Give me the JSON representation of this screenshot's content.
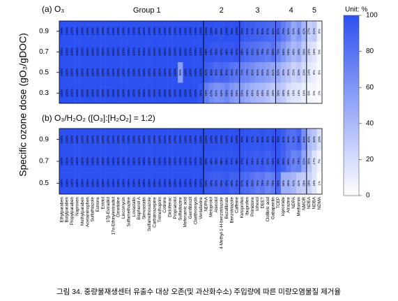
{
  "chart_data": [
    {
      "type": "heatmap",
      "title": "(a) O₃",
      "ylabel": "Specific ozone dose (gO₃/gDOC)",
      "rows": [
        0.9,
        0.7,
        0.5,
        0.3
      ],
      "groups": [
        {
          "name": "Group 1",
          "categories": [
            "Ethylparaben",
            "Butylparaben",
            "Propylparaben",
            "Naproxen",
            "Methylparaben",
            "Acetaminophen",
            "Sulfathiazole",
            "Estrone",
            "Estriol",
            "17β-Estradiol",
            "17α-Ethinylestradiol",
            "Cimetidine",
            "Lincomycin",
            "Sulfamethazine",
            "Lovastatin",
            "Bisphenol A",
            "Simvastatin",
            "Sulfamethoxazole",
            "Carbamazepine",
            "Trimethoprim",
            "Cotinine",
            "Diclofenac",
            "Propranolol",
            "Sulfadiazine",
            "Mefenamic acid",
            "Gemfibrozil",
            "Clarithromycin",
            "Venlafaxine"
          ]
        },
        {
          "name": "2",
          "categories": [
            "NDPhA",
            "Metoprolol",
            "Atenolol",
            "4-Methyl-1-H-benzotriazole",
            "Bezafibrate",
            "Benzotriazole",
            "Caffeine"
          ]
        },
        {
          "name": "3",
          "categories": [
            "Ketoprofen",
            "Ibuprofen",
            "Primidone",
            "Iohexol",
            "DEET",
            "Clofibric acid",
            "Gabapentin"
          ]
        },
        {
          "name": "4",
          "categories": [
            "TCEP",
            "Iopromide",
            "Atrazine",
            "NDPA",
            "Metformin",
            "NMOR"
          ]
        },
        {
          "name": "5",
          "categories": [
            "NDEA",
            "NDBA",
            "NDMA"
          ]
        }
      ],
      "values": [
        [
          100,
          100,
          100,
          100,
          100,
          100,
          100,
          100,
          100,
          100,
          100,
          100,
          100,
          100,
          100,
          100,
          100,
          100,
          100,
          100,
          100,
          100,
          100,
          100,
          100,
          100,
          100,
          100,
          100,
          100,
          99,
          99,
          100,
          99,
          100,
          96,
          94,
          92,
          90,
          89,
          87,
          85,
          85,
          75,
          65,
          50,
          58,
          42,
          27,
          31,
          9
        ],
        [
          100,
          100,
          100,
          100,
          100,
          100,
          100,
          100,
          100,
          100,
          100,
          100,
          100,
          100,
          100,
          100,
          100,
          100,
          100,
          100,
          100,
          100,
          100,
          100,
          100,
          100,
          100,
          100,
          98,
          97,
          95,
          97,
          96,
          95,
          97,
          88,
          85,
          82,
          80,
          78,
          75,
          80,
          70,
          60,
          50,
          40,
          45,
          30,
          20,
          15,
          5
        ],
        [
          100,
          100,
          100,
          100,
          100,
          100,
          100,
          100,
          100,
          100,
          100,
          100,
          100,
          100,
          100,
          100,
          100,
          100,
          100,
          100,
          100,
          100,
          100,
          55,
          100,
          100,
          100,
          100,
          92,
          90,
          85,
          88,
          86,
          80,
          78,
          72,
          70,
          65,
          60,
          58,
          55,
          51,
          50,
          40,
          35,
          25,
          30,
          20,
          14,
          9,
          3
        ],
        [
          100,
          100,
          100,
          100,
          100,
          100,
          100,
          100,
          100,
          100,
          100,
          100,
          100,
          100,
          100,
          100,
          100,
          100,
          100,
          100,
          100,
          100,
          100,
          100,
          100,
          100,
          100,
          95,
          75,
          67,
          62,
          64,
          69,
          60,
          55,
          55,
          50,
          45,
          42,
          40,
          35,
          30,
          35,
          30,
          20,
          15,
          14,
          10,
          6,
          5,
          2
        ]
      ],
      "value_labels": [
        [
          "100%",
          "100%",
          "100%",
          "100%",
          "100%",
          "100%",
          "100%",
          "100%",
          "100%",
          "100%",
          "100%",
          "100%",
          "100%",
          "100%",
          "100%",
          "100%",
          "100%",
          "100%",
          "100%",
          "100%",
          "100%",
          "100%",
          "100%",
          "100%",
          "100%",
          "100%",
          "100%",
          "100%",
          "100%",
          "100%",
          "99%",
          "99%",
          "100%",
          "99%",
          "100%",
          "96%",
          "94%",
          "92%",
          "90%",
          "89%",
          "87%",
          "85%",
          "85%",
          "75%",
          "65%",
          "50%",
          "58%",
          "42%",
          "27%",
          "31%",
          "9%"
        ],
        [
          "100%",
          "100%",
          "100%",
          "100%",
          "100%",
          "100%",
          "100%",
          "100%",
          "100%",
          "100%",
          "100%",
          "100%",
          "100%",
          "100%",
          "100%",
          "100%",
          "100%",
          "100%",
          "100%",
          "100%",
          "100%",
          "100%",
          "100%",
          "100%",
          "100%",
          "100%",
          "100%",
          "100%",
          "98%",
          "97%",
          "95%",
          "97%",
          "96%",
          "95%",
          "97%",
          "88%",
          "85%",
          "82%",
          "80%",
          "78%",
          "75%",
          "80%",
          "70%",
          "60%",
          "50%",
          "40%",
          "45%",
          "30%",
          "20%",
          "15%",
          "5%"
        ],
        [
          "100%",
          "100%",
          "100%",
          "100%",
          "100%",
          "100%",
          "100%",
          "100%",
          "100%",
          "100%",
          "100%",
          "100%",
          "100%",
          "100%",
          "100%",
          "100%",
          "100%",
          "100%",
          "100%",
          "100%",
          "100%",
          "100%",
          "100%",
          "55%",
          "100%",
          "100%",
          "100%",
          "100%",
          "92%",
          "90%",
          "85%",
          "88%",
          "86%",
          "80%",
          "78%",
          "72%",
          "70%",
          "65%",
          "60%",
          "58%",
          "55%",
          "51%",
          "50%",
          "40%",
          "35%",
          "25%",
          "30%",
          "20%",
          "14%",
          "9%",
          "3%"
        ],
        [
          "100%",
          "100%",
          "100%",
          "100%",
          "100%",
          "100%",
          "100%",
          "100%",
          "100%",
          "100%",
          "100%",
          "100%",
          "100%",
          "100%",
          "100%",
          "100%",
          "100%",
          "100%",
          "100%",
          "100%",
          "100%",
          "100%",
          "100%",
          "100%",
          "100%",
          "100%",
          "100%",
          "95%",
          "75%",
          "67%",
          "62%",
          "64%",
          "69%",
          "60%",
          "55%",
          "55%",
          "50%",
          "45%",
          "42%",
          "40%",
          "35%",
          "30%",
          "35%",
          "30%",
          "20%",
          "15%",
          "14%",
          "10%",
          "6%",
          "5%",
          "2%"
        ]
      ],
      "colorbar": {
        "label": "Unit: %",
        "lim": [
          0,
          100
        ],
        "ticks": [
          0,
          20,
          40,
          60,
          80,
          100
        ],
        "colors": [
          "#ffffff",
          "#2d50f0"
        ]
      }
    },
    {
      "type": "heatmap",
      "title": "(b) O₃/H₂O₂ ([O₃]:[H₂O₂] = 1:2)",
      "rows": [
        0.9,
        0.7,
        0.5
      ],
      "values": [
        [
          100,
          100,
          100,
          100,
          100,
          100,
          100,
          100,
          100,
          100,
          100,
          100,
          100,
          100,
          100,
          100,
          100,
          100,
          100,
          100,
          100,
          100,
          100,
          100,
          100,
          100,
          100,
          100,
          100,
          100,
          100,
          100,
          100,
          99,
          100,
          99,
          98,
          97,
          96,
          98,
          96,
          98,
          98,
          92,
          84,
          82,
          88,
          64,
          40,
          33,
          18
        ],
        [
          100,
          100,
          100,
          100,
          100,
          100,
          100,
          100,
          100,
          100,
          100,
          100,
          100,
          100,
          100,
          100,
          100,
          100,
          100,
          100,
          100,
          100,
          100,
          100,
          100,
          100,
          100,
          100,
          99,
          98,
          98,
          98,
          99,
          97,
          98,
          97,
          95,
          94,
          92,
          94,
          90,
          94,
          96,
          90,
          80,
          70,
          74,
          52,
          35,
          17,
          7
        ],
        [
          100,
          100,
          100,
          100,
          100,
          100,
          100,
          100,
          100,
          100,
          100,
          100,
          100,
          100,
          100,
          100,
          100,
          100,
          100,
          100,
          100,
          100,
          100,
          100,
          100,
          100,
          100,
          100,
          95,
          93,
          92,
          94,
          95,
          90,
          91,
          87,
          85,
          80,
          75,
          78,
          70,
          75,
          86,
          46,
          46,
          41,
          31,
          28,
          26,
          15,
          1
        ]
      ],
      "value_labels": [
        [
          "100%",
          "100%",
          "100%",
          "100%",
          "100%",
          "100%",
          "100%",
          "100%",
          "100%",
          "100%",
          "100%",
          "100%",
          "100%",
          "100%",
          "100%",
          "100%",
          "100%",
          "100%",
          "100%",
          "100%",
          "100%",
          "100%",
          "100%",
          "100%",
          "100%",
          "100%",
          "100%",
          "100%",
          "100%",
          "100%",
          "100%",
          "100%",
          "100%",
          "99%",
          "100%",
          "99%",
          "98%",
          "97%",
          "96%",
          "98%",
          "96%",
          "98%",
          "98%",
          "92%",
          "84%",
          "82%",
          "88%",
          "64%",
          "40%",
          "33%",
          "18%"
        ],
        [
          "100%",
          "100%",
          "100%",
          "100%",
          "100%",
          "100%",
          "100%",
          "100%",
          "100%",
          "100%",
          "100%",
          "100%",
          "100%",
          "100%",
          "100%",
          "100%",
          "100%",
          "100%",
          "100%",
          "100%",
          "100%",
          "100%",
          "100%",
          "100%",
          "100%",
          "100%",
          "100%",
          "100%",
          "99%",
          "98%",
          "98%",
          "98%",
          "99%",
          "97%",
          "98%",
          "97%",
          "95%",
          "94%",
          "92%",
          "94%",
          "90%",
          "94%",
          "96%",
          "90%",
          "80%",
          "70%",
          "74%",
          "52%",
          "35%",
          "17%",
          "7%"
        ],
        [
          "100%",
          "100%",
          "100%",
          "100%",
          "100%",
          "100%",
          "100%",
          "100%",
          "100%",
          "100%",
          "100%",
          "100%",
          "100%",
          "100%",
          "100%",
          "100%",
          "100%",
          "100%",
          "100%",
          "100%",
          "100%",
          "100%",
          "100%",
          "100%",
          "100%",
          "100%",
          "100%",
          "100%",
          "95%",
          "93%",
          "92%",
          "94%",
          "95%",
          "90%",
          "91%",
          "87%",
          "85%",
          "80%",
          "75%",
          "78%",
          "70%",
          "75%",
          "86%",
          "46%",
          "46%",
          "41%",
          "31%",
          "28%",
          "26%",
          "15%",
          "1%"
        ]
      ]
    }
  ],
  "caption": "그림 34. 중량물재생센터 유출수 대상 오존(및 과산화수소) 주입량에 따른 미량오염물질 제거율"
}
